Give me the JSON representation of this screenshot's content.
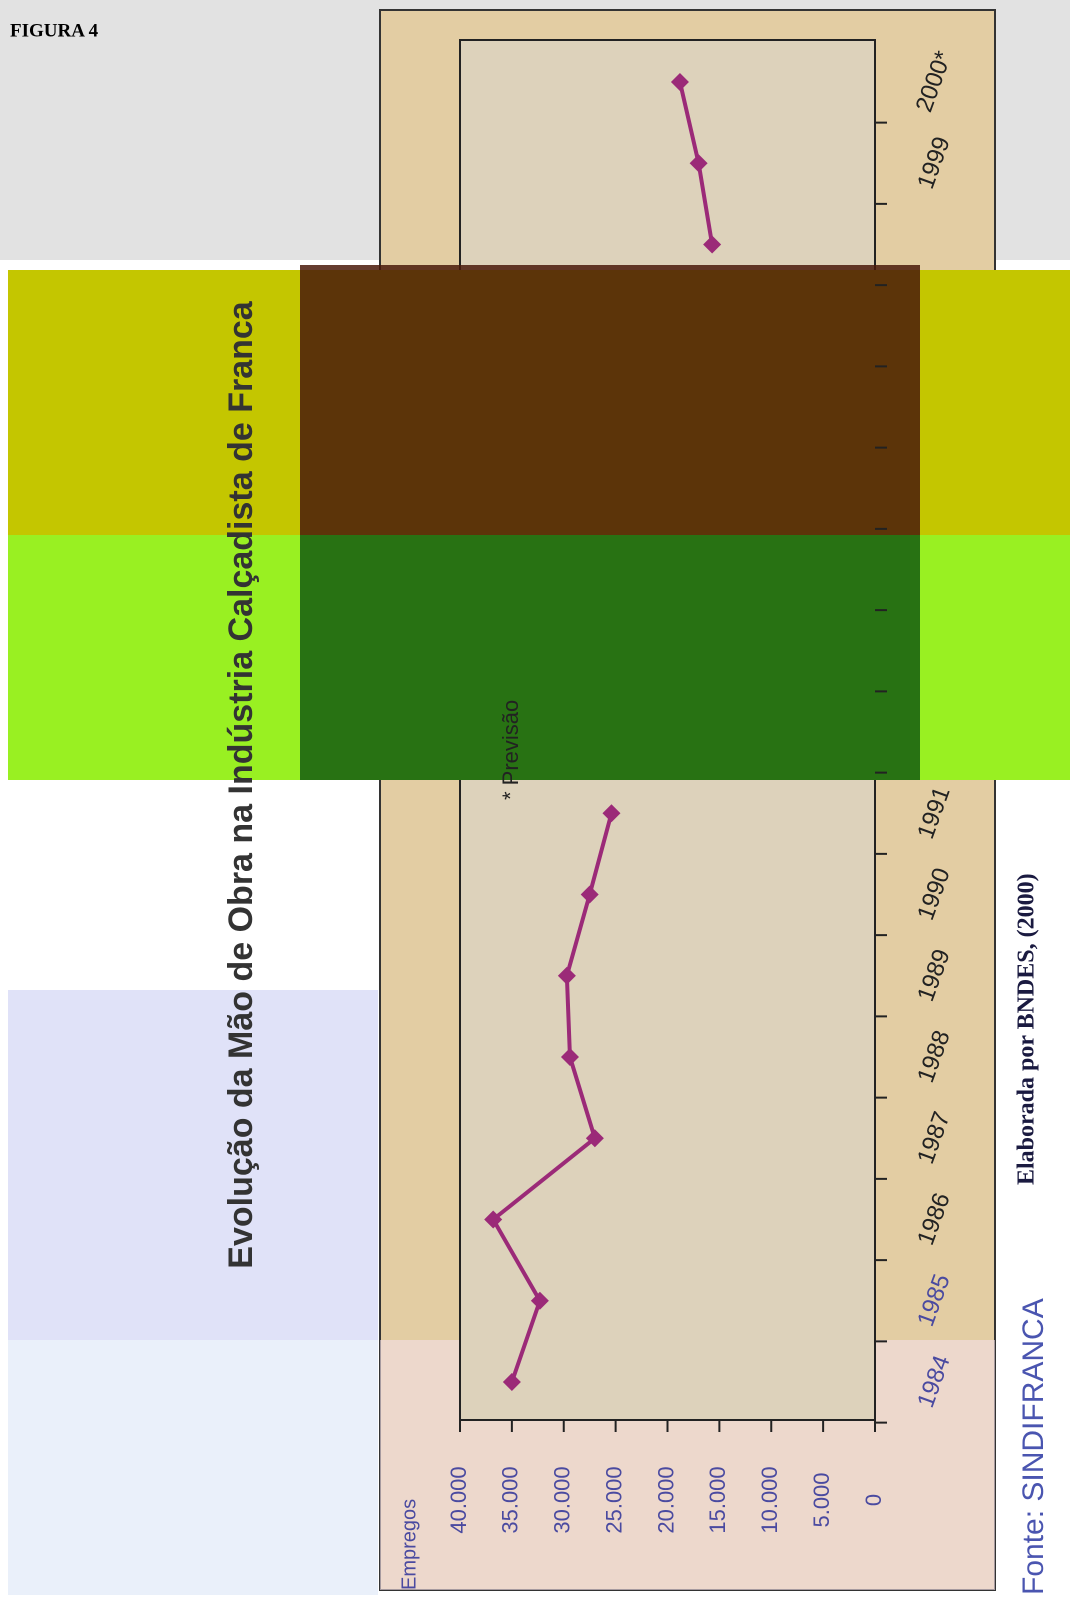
{
  "figure_label": "FIGURA 4",
  "source": "Fonte: SINDIFRANCA",
  "credit": "Elaborada por BNDES, (2000)",
  "chart_data": {
    "type": "line",
    "title": "Evolução da Mão de Obra na Indústria Calçadista de Franca",
    "y_label": "Empregos",
    "note": "* Previsão",
    "categories": [
      "1984",
      "1985",
      "1986",
      "1987",
      "1988",
      "1989",
      "1990",
      "1991",
      null,
      null,
      null,
      null,
      null,
      null,
      null,
      "1999",
      "2000*"
    ],
    "values": [
      35000,
      32300,
      36800,
      27000,
      29400,
      29700,
      27500,
      25400,
      null,
      null,
      null,
      null,
      null,
      null,
      15700,
      17000,
      18800
    ],
    "color": "#9b2a78",
    "ylim": [
      0,
      40000
    ],
    "yticks": [
      0,
      {
        "value": 5000,
        "label": "5.000"
      },
      {
        "value": 10000,
        "label": "10.000"
      },
      {
        "value": 15000,
        "label": "15.000"
      },
      {
        "value": 20000,
        "label": "20.000"
      },
      {
        "value": 25000,
        "label": "25.000"
      },
      {
        "value": 30000,
        "label": "30.000"
      },
      {
        "value": 35000,
        "label": "35.000"
      },
      {
        "value": 40000,
        "label": "40.000"
      }
    ]
  }
}
